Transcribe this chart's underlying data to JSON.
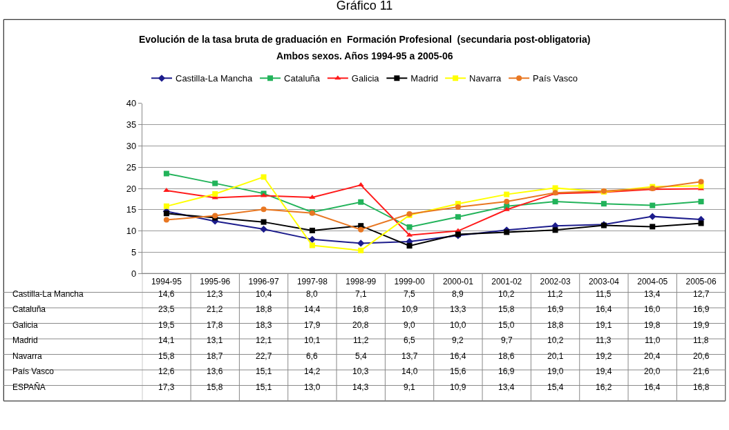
{
  "chart_data": {
    "type": "line",
    "title": "Gráfico 11",
    "subtitle": "Evolución de la tasa bruta de graduación en  Formación Profesional  (secundaria post-obligatoria)\nAmbos sexos. Años 1994-95 a 2005-06",
    "categories": [
      "1994-95",
      "1995-96",
      "1996-97",
      "1997-98",
      "1998-99",
      "1999-00",
      "2000-01",
      "2001-02",
      "2002-03",
      "2003-04",
      "2004-05",
      "2005-06"
    ],
    "series": [
      {
        "name": "Castilla-La Mancha",
        "color": "#1c1c8c",
        "marker": "diamond",
        "values": [
          14.6,
          12.3,
          10.4,
          8.0,
          7.1,
          7.5,
          8.9,
          10.2,
          11.2,
          11.5,
          13.4,
          12.7
        ],
        "value_labels": [
          "14,6",
          "12,3",
          "10,4",
          "8,0",
          "7,1",
          "7,5",
          "8,9",
          "10,2",
          "11,2",
          "11,5",
          "13,4",
          "12,7"
        ]
      },
      {
        "name": "Cataluña",
        "color": "#22b35a",
        "marker": "square",
        "values": [
          23.5,
          21.2,
          18.8,
          14.4,
          16.8,
          10.9,
          13.3,
          15.8,
          16.9,
          16.4,
          16.0,
          16.9
        ],
        "value_labels": [
          "23,5",
          "21,2",
          "18,8",
          "14,4",
          "16,8",
          "10,9",
          "13,3",
          "15,8",
          "16,9",
          "16,4",
          "16,0",
          "16,9"
        ]
      },
      {
        "name": "Galicia",
        "color": "#ff1a1a",
        "marker": "triangle",
        "values": [
          19.5,
          17.8,
          18.3,
          17.9,
          20.8,
          9.0,
          10.0,
          15.0,
          18.8,
          19.1,
          19.8,
          19.9
        ],
        "value_labels": [
          "19,5",
          "17,8",
          "18,3",
          "17,9",
          "20,8",
          "9,0",
          "10,0",
          "15,0",
          "18,8",
          "19,1",
          "19,8",
          "19,9"
        ]
      },
      {
        "name": "Madrid",
        "color": "#000000",
        "marker": "square",
        "values": [
          14.1,
          13.1,
          12.1,
          10.1,
          11.2,
          6.5,
          9.2,
          9.7,
          10.2,
          11.3,
          11.0,
          11.8
        ],
        "value_labels": [
          "14,1",
          "13,1",
          "12,1",
          "10,1",
          "11,2",
          "6,5",
          "9,2",
          "9,7",
          "10,2",
          "11,3",
          "11,0",
          "11,8"
        ]
      },
      {
        "name": "Navarra",
        "color": "#ffff00",
        "marker": "square",
        "values": [
          15.8,
          18.7,
          22.7,
          6.6,
          5.4,
          13.7,
          16.4,
          18.6,
          20.1,
          19.2,
          20.4,
          20.6
        ],
        "value_labels": [
          "15,8",
          "18,7",
          "22,7",
          "6,6",
          "5,4",
          "13,7",
          "16,4",
          "18,6",
          "20,1",
          "19,2",
          "20,4",
          "20,6"
        ]
      },
      {
        "name": "País Vasco",
        "color": "#e87722",
        "marker": "circle",
        "values": [
          12.6,
          13.6,
          15.1,
          14.2,
          10.3,
          14.0,
          15.6,
          16.9,
          19.0,
          19.4,
          20.0,
          21.6
        ],
        "value_labels": [
          "12,6",
          "13,6",
          "15,1",
          "14,2",
          "10,3",
          "14,0",
          "15,6",
          "16,9",
          "19,0",
          "19,4",
          "20,0",
          "21,6"
        ]
      },
      {
        "name": "ESPAÑA",
        "values": [
          null,
          null,
          null,
          null,
          null,
          null,
          null,
          null,
          null,
          null,
          null,
          null
        ],
        "value_labels": [
          "17,3",
          "15,8",
          "15,1",
          "13,0",
          "14,3",
          "9,1",
          "10,9",
          "13,4",
          "15,4",
          "16,2",
          "16,4",
          "16,8"
        ]
      }
    ],
    "ylim": [
      0,
      40
    ],
    "yticks": [
      0,
      5,
      10,
      15,
      20,
      25,
      30,
      35,
      40
    ],
    "grid": "y",
    "legend": "top"
  }
}
